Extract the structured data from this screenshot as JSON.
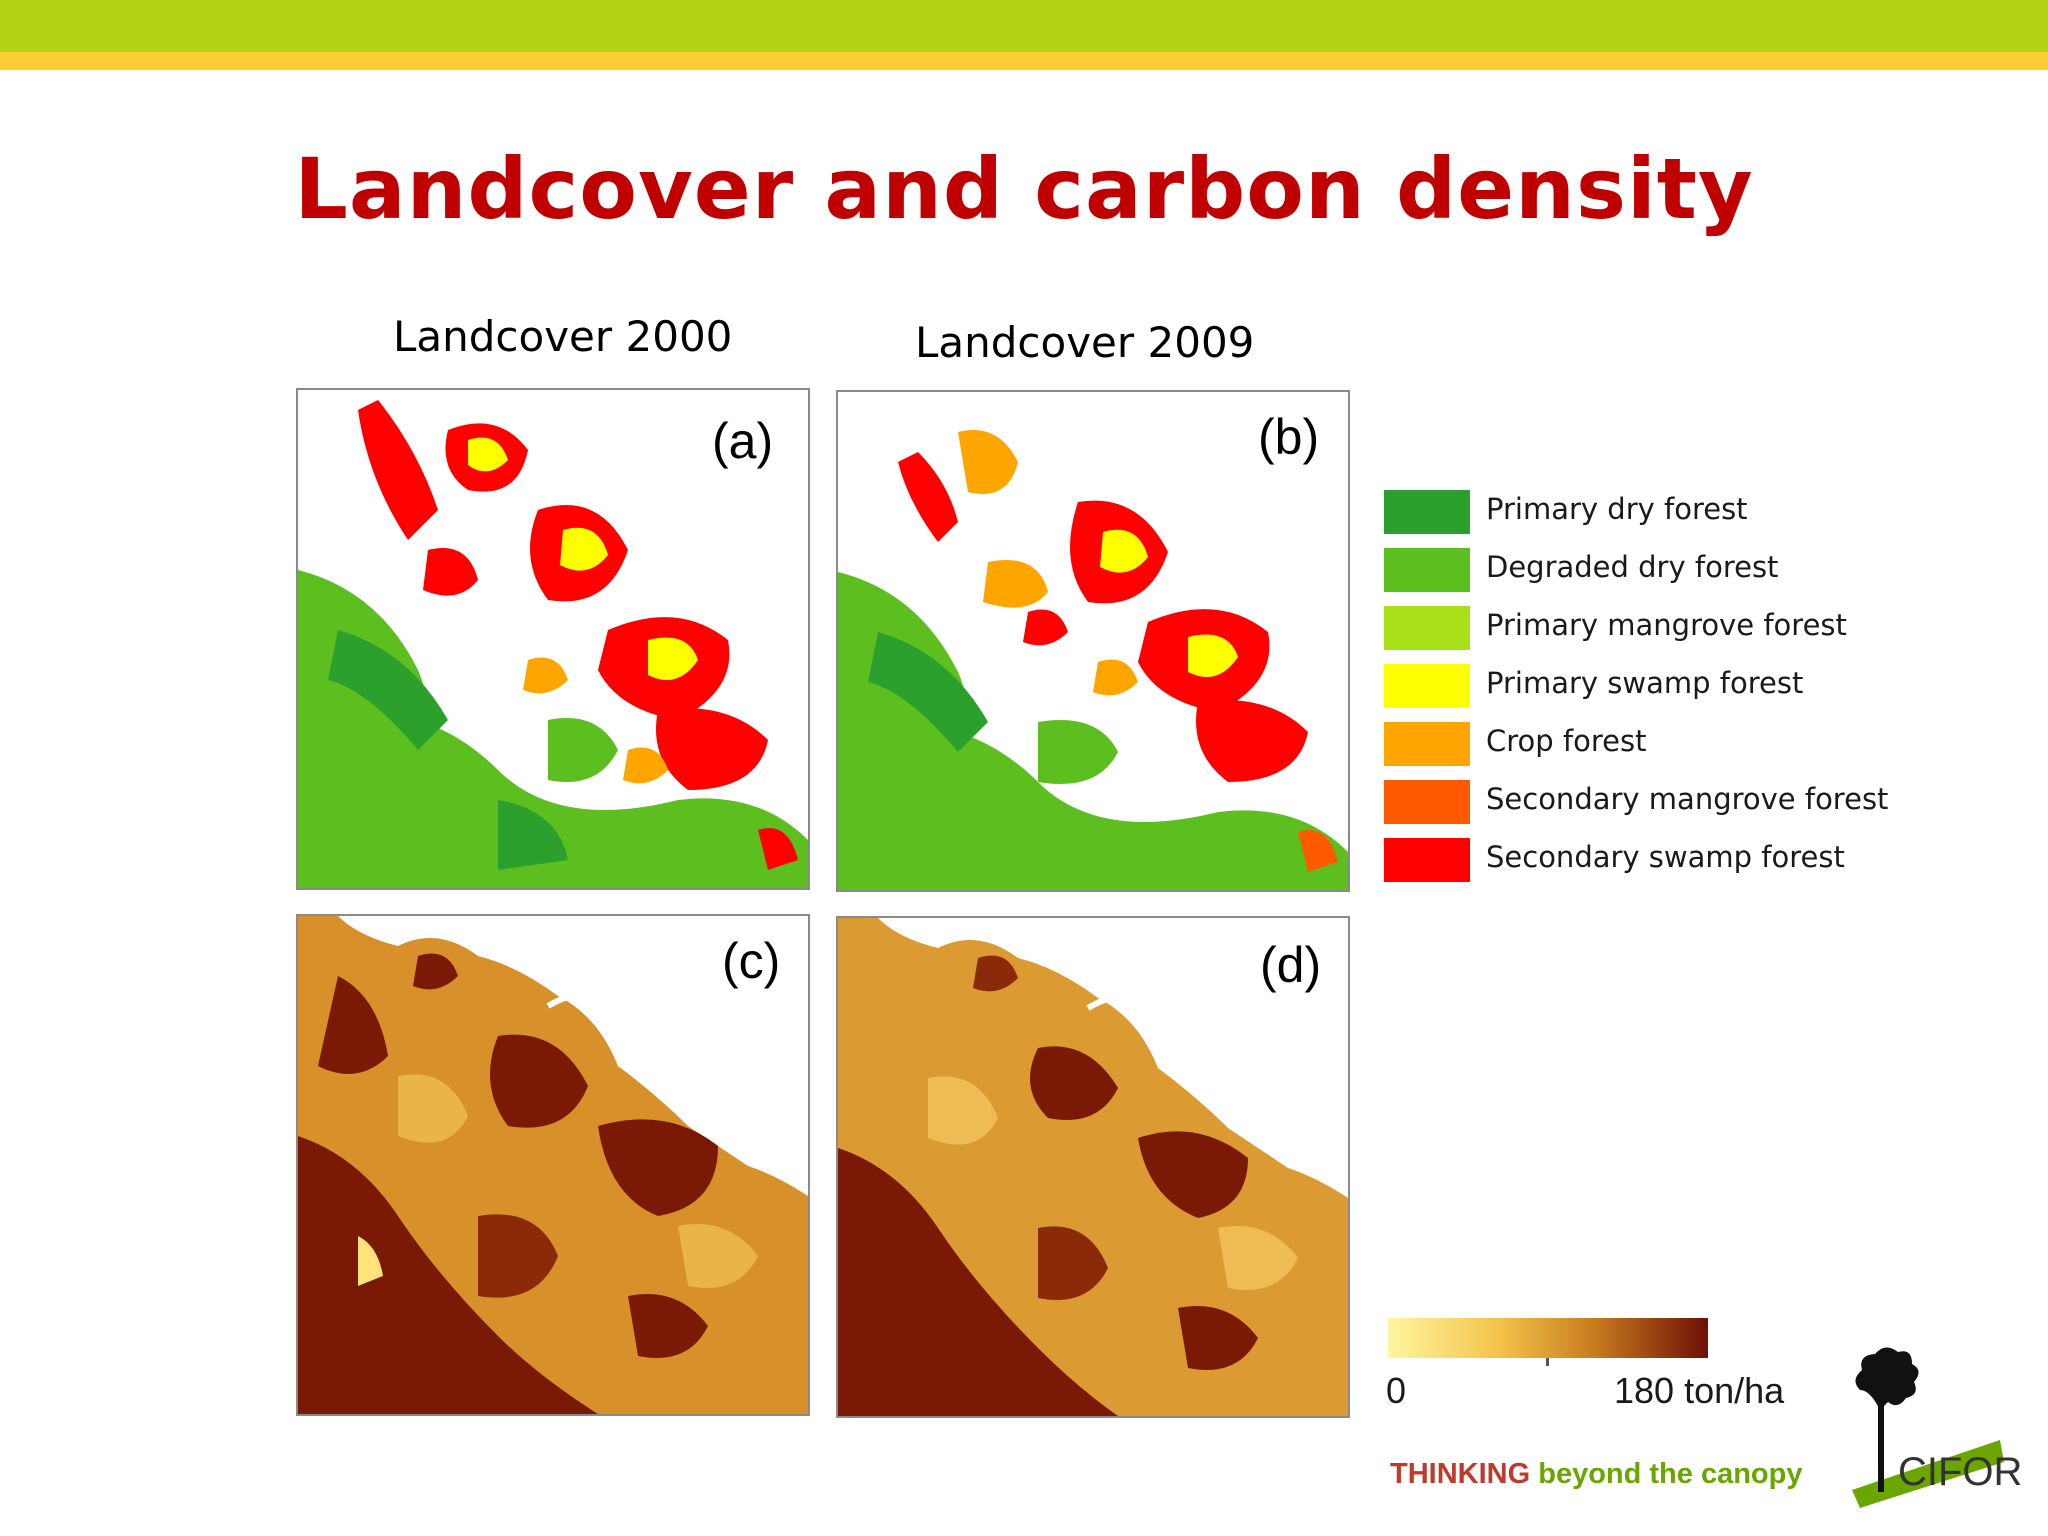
{
  "title": "Landcover and carbon density",
  "columns": {
    "left_label": "Landcover 2000",
    "right_label": "Landcover 2009"
  },
  "panels": {
    "a": "(a)",
    "b": "(b)",
    "c": "(c)",
    "d": "(d)"
  },
  "legend": [
    {
      "label": "Primary dry forest",
      "color": "#2ca02c"
    },
    {
      "label": "Degraded dry forest",
      "color": "#5cbf1f"
    },
    {
      "label": "Primary mangrove forest",
      "color": "#a8e01a"
    },
    {
      "label": "Primary swamp forest",
      "color": "#ffff00"
    },
    {
      "label": "Crop forest",
      "color": "#ffa500"
    },
    {
      "label": "Secondary mangrove forest",
      "color": "#ff5a00"
    },
    {
      "label": "Secondary swamp forest",
      "color": "#ff0000"
    }
  ],
  "scale": {
    "min_label": "0",
    "max_label": "180 ton/ha",
    "color_low": "#fff6a0",
    "color_high": "#6e1006"
  },
  "footer": {
    "tagline_strong": "THINKING",
    "tagline_rest": " beyond the canopy",
    "logo_text": "CIFOR"
  },
  "colors": {
    "top_band": "#b2d415",
    "accent_band": "#ffcc33",
    "title": "#c00000"
  }
}
